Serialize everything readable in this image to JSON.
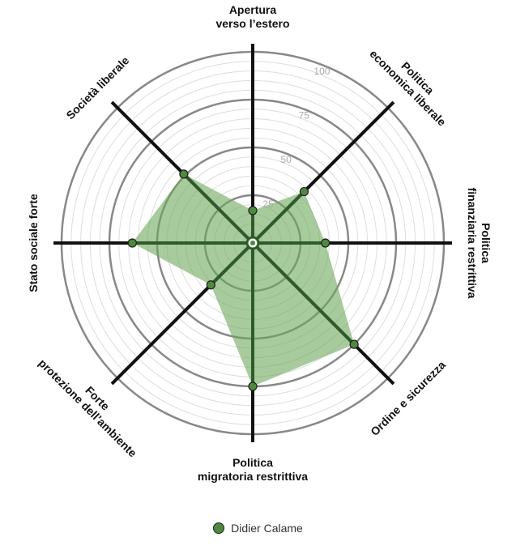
{
  "chart_data": {
    "type": "radar",
    "axes": [
      [
        "Apertura",
        "verso l’estero"
      ],
      [
        "Politica",
        "economica liberale"
      ],
      [
        "Politica",
        "finanziaria restrittiva"
      ],
      [
        "Ordine e sicurezza"
      ],
      [
        "Politica",
        "migratoria restrittiva"
      ],
      [
        "Forte",
        "protezione dell’ambiente"
      ],
      [
        "Stato sociale forte"
      ],
      [
        "Società liberale"
      ]
    ],
    "range": [
      0,
      100
    ],
    "ticks": [
      25,
      50,
      75,
      100
    ],
    "series": [
      {
        "name": "Didier Calame",
        "values": [
          17,
          38,
          38,
          75,
          75,
          31,
          63,
          51
        ],
        "color": "#5a9a4a"
      }
    ]
  },
  "legend": {
    "label": "Didier Calame"
  },
  "colors": {
    "fill": "#6ea85c",
    "marker": "#4e8a3e",
    "axis": "#111111",
    "grid_major": "#888888",
    "grid_minor": "#dddddd",
    "inner_spoke": "#2f5a2b"
  }
}
